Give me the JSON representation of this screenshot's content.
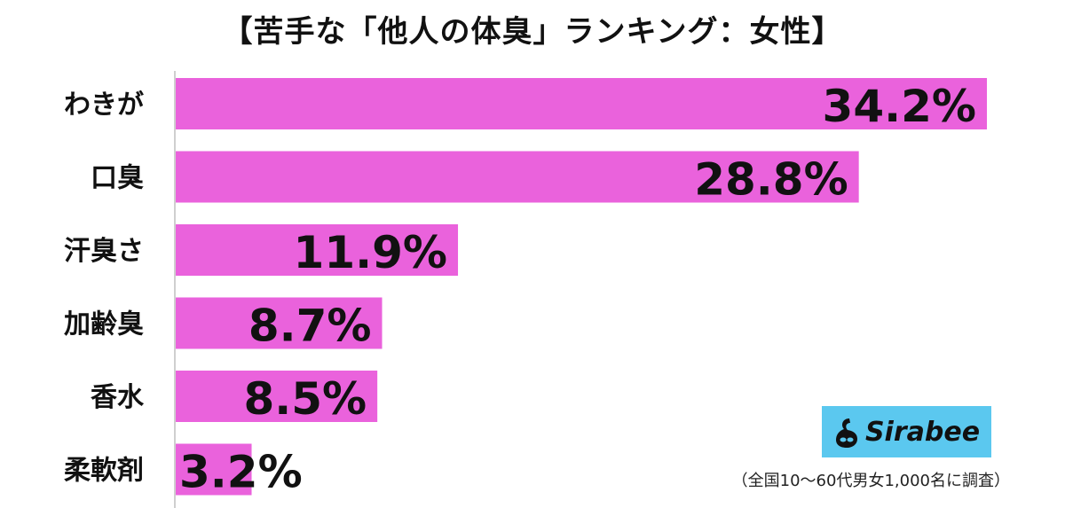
{
  "chart_data": {
    "type": "bar",
    "orientation": "horizontal",
    "title": "【苦手な「他人の体臭」ランキング：女性】",
    "categories": [
      "わきが",
      "口臭",
      "汗臭さ",
      "加齢臭",
      "香水",
      "柔軟剤"
    ],
    "values": [
      34.2,
      28.8,
      11.9,
      8.7,
      8.5,
      3.2
    ],
    "value_labels": [
      "34.2%",
      "28.8%",
      "11.9%",
      "8.7%",
      "8.5%",
      "3.2%"
    ],
    "xlim": [
      0,
      36
    ],
    "grid": false,
    "legend": "none",
    "bar_color": "#ea62dc"
  },
  "logo": {
    "text": "Sirabee",
    "color": "#5bc8ef"
  },
  "note": "（全国10〜60代男女1,000名に調査）"
}
